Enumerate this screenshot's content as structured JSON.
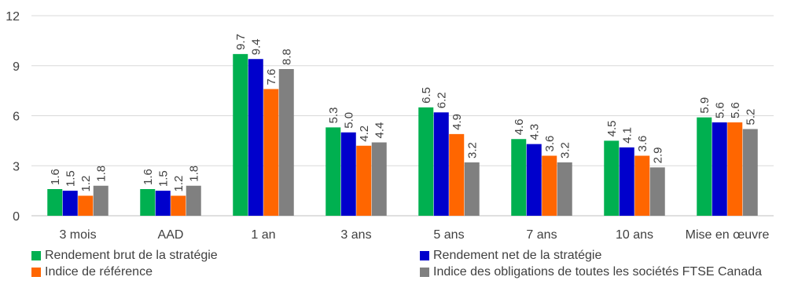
{
  "chart_data": {
    "type": "bar",
    "categories": [
      "3 mois",
      "AAD",
      "1 an",
      "3 ans",
      "5 ans",
      "7 ans",
      "10 ans",
      "Mise en œuvre"
    ],
    "series": [
      {
        "name": "Rendement brut de la stratégie",
        "color": "#00b050",
        "values": [
          1.6,
          1.6,
          9.7,
          5.3,
          6.5,
          4.6,
          4.5,
          5.9
        ],
        "labels": [
          "1.6",
          "1.6",
          "9.7",
          "5.3",
          "6.5",
          "4.6",
          "4.5",
          "5.9"
        ]
      },
      {
        "name": "Rendement net de la stratégie",
        "color": "#0000cc",
        "values": [
          1.5,
          1.5,
          9.4,
          5.0,
          6.2,
          4.3,
          4.1,
          5.6
        ],
        "labels": [
          "1.5",
          "1.5",
          "9.4",
          "5.0",
          "6.2",
          "4.3",
          "4.1",
          "5.6"
        ]
      },
      {
        "name": "Indice de référence",
        "color": "#ff6600",
        "values": [
          1.2,
          1.2,
          7.6,
          4.2,
          4.9,
          3.6,
          3.6,
          5.6
        ],
        "labels": [
          "1.2",
          "1.2",
          "7.6",
          "4.2",
          "4.9",
          "3.6",
          "3.6",
          "5.6"
        ]
      },
      {
        "name": "Indice des obligations de toutes les sociétés FTSE Canada",
        "color": "#808080",
        "values": [
          1.8,
          1.8,
          8.8,
          4.4,
          3.2,
          3.2,
          2.9,
          5.2
        ],
        "labels": [
          "1.8",
          "1.8",
          "8.8",
          "4.4",
          "3.2",
          "3.2",
          "2.9",
          "5.2"
        ]
      }
    ],
    "yticks": [
      "0",
      "3",
      "6",
      "9",
      "12"
    ],
    "ylim": [
      0,
      12
    ],
    "grid": true,
    "legend_position": "bottom"
  }
}
